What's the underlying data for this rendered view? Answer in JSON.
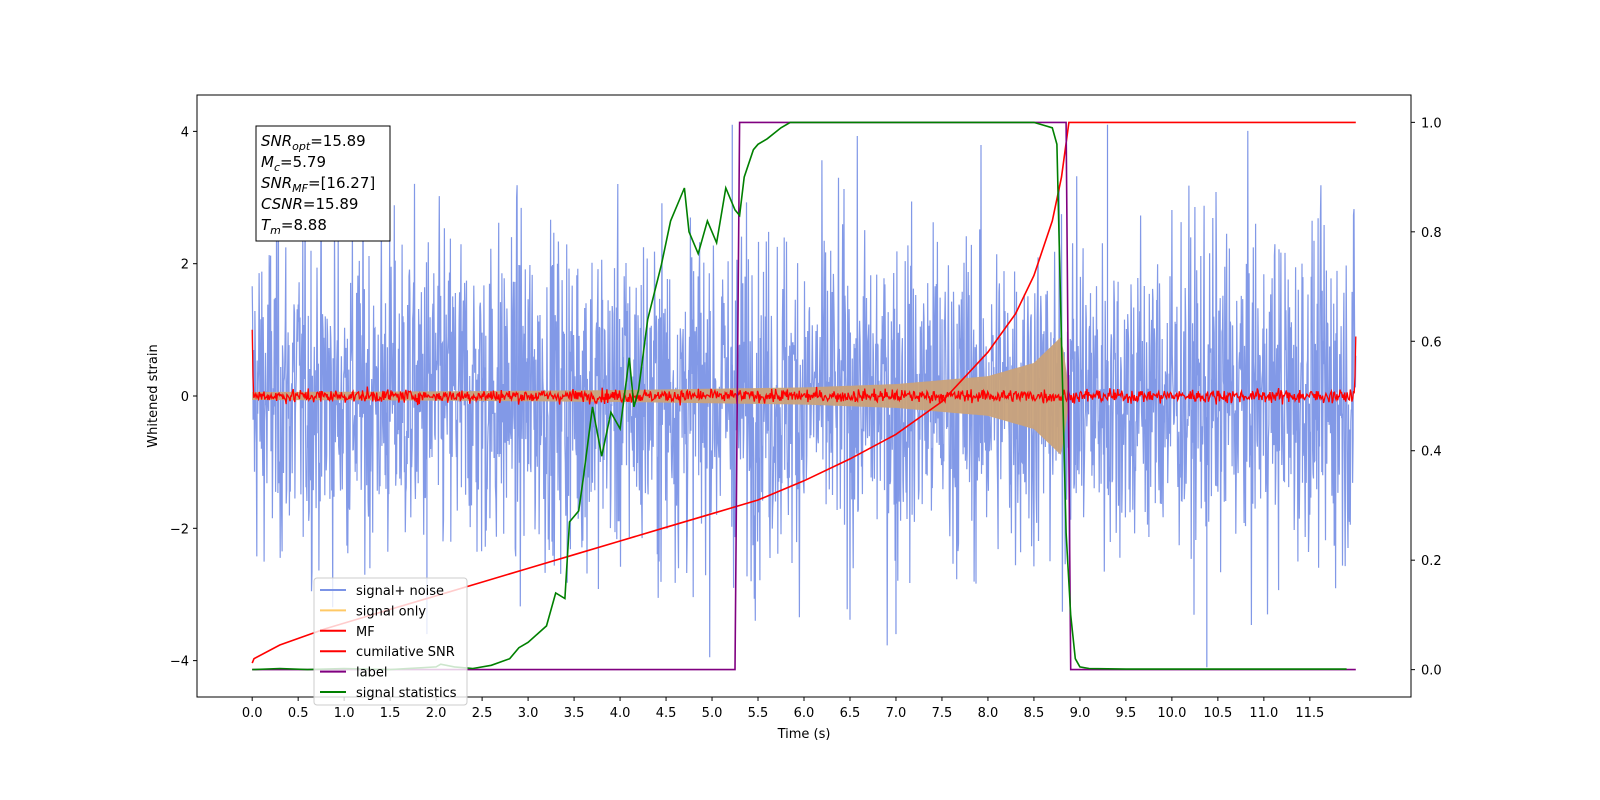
{
  "chart_data": {
    "type": "line",
    "xlabel": "Time (s)",
    "ylabel": "Whitened strain",
    "xlim": [
      -0.6,
      12.6
    ],
    "ylim": [
      -4.55,
      4.55
    ],
    "y2lim": [
      -0.05,
      1.05
    ],
    "x_ticks": [
      0.0,
      0.5,
      1.0,
      1.5,
      2.0,
      2.5,
      3.0,
      3.5,
      4.0,
      4.5,
      5.0,
      5.5,
      6.0,
      6.5,
      7.0,
      7.5,
      8.0,
      8.5,
      9.0,
      9.5,
      10.0,
      10.5,
      11.0,
      11.5
    ],
    "x_tick_labels": [
      "0.0",
      "0.5",
      "1.0",
      "1.5",
      "2.0",
      "2.5",
      "3.0",
      "3.5",
      "4.0",
      "4.5",
      "5.0",
      "5.5",
      "6.0",
      "6.5",
      "7.0",
      "7.5",
      "8.0",
      "8.5",
      "9.0",
      "9.5",
      "10.0",
      "10.5",
      "11.0",
      "11.5"
    ],
    "y_ticks": [
      -4,
      -2,
      0,
      2,
      4
    ],
    "y_tick_labels": [
      "−4",
      "−2",
      "0",
      "2",
      "4"
    ],
    "y2_ticks": [
      0.0,
      0.2,
      0.4,
      0.6,
      0.8,
      1.0
    ],
    "y2_tick_labels": [
      "0.0",
      "0.2",
      "0.4",
      "0.6",
      "0.8",
      "1.0"
    ],
    "annotation": [
      {
        "main": "SNR",
        "sub": "opt",
        "rest": "=15.89"
      },
      {
        "main": "M",
        "sub": "c",
        "rest": "=5.79"
      },
      {
        "main": "SNR",
        "sub": "MF",
        "rest": "=[16.27]"
      },
      {
        "main": "CSNR",
        "sub": "",
        "rest": "=15.89"
      },
      {
        "main": "T",
        "sub": "m",
        "rest": "=8.88"
      }
    ],
    "legend": {
      "position": "lower-left",
      "entries": [
        {
          "label": "signal+ noise",
          "color": "#7b93e6"
        },
        {
          "label": "signal only",
          "color": "#ffc966"
        },
        {
          "label": "MF",
          "color": "#ff0000"
        },
        {
          "label": "cumilative SNR",
          "color": "#ff0000"
        },
        {
          "label": "label",
          "color": "#800080"
        },
        {
          "label": "signal statistics",
          "color": "#008000"
        }
      ]
    },
    "series": [
      {
        "name": "signal+ noise",
        "axis": "left",
        "color": "#7b93e6",
        "description_of_shape": "whitened noise time series spanning 0-12 s, roughly ±2.5 with spikes up to ±4",
        "x_range": [
          0,
          12
        ],
        "amplitude": 1.25
      },
      {
        "name": "signal only",
        "axis": "left",
        "color": "#c9a27a",
        "x_range": [
          0,
          8.88
        ],
        "envelope_x": [
          0,
          2,
          4,
          6,
          7,
          8,
          8.5,
          8.8,
          8.88
        ],
        "envelope_y": [
          0.06,
          0.07,
          0.09,
          0.13,
          0.18,
          0.3,
          0.5,
          0.9,
          0.1
        ]
      },
      {
        "name": "MF",
        "axis": "left",
        "color": "#ff0000",
        "x_range": [
          0,
          12
        ],
        "amplitude": 0.05,
        "edge_values": {
          "start": 1.0,
          "end": 0.9
        }
      },
      {
        "name": "cumilative SNR",
        "axis": "right",
        "color": "#ff0000",
        "x": [
          0.0,
          0.02,
          0.3,
          0.8,
          1.5,
          2.0,
          2.5,
          3.0,
          3.5,
          4.0,
          4.5,
          5.0,
          5.5,
          6.0,
          6.5,
          7.0,
          7.5,
          8.0,
          8.3,
          8.5,
          8.7,
          8.8,
          8.88,
          12.0
        ],
        "y": [
          0.012,
          0.02,
          0.045,
          0.075,
          0.11,
          0.135,
          0.16,
          0.185,
          0.21,
          0.235,
          0.26,
          0.285,
          0.31,
          0.345,
          0.385,
          0.43,
          0.49,
          0.58,
          0.65,
          0.72,
          0.82,
          0.9,
          1.0,
          1.0
        ]
      },
      {
        "name": "label",
        "axis": "right",
        "color": "#800080",
        "x": [
          0.0,
          5.25,
          5.3,
          8.85,
          8.9,
          12.0
        ],
        "y": [
          0.0,
          0.0,
          1.0,
          1.0,
          0.0,
          0.0
        ]
      },
      {
        "name": "signal statistics",
        "axis": "right",
        "color": "#008000",
        "x": [
          0.0,
          0.3,
          0.6,
          1.0,
          1.5,
          2.0,
          2.05,
          2.2,
          2.4,
          2.6,
          2.8,
          2.9,
          3.0,
          3.1,
          3.2,
          3.3,
          3.4,
          3.45,
          3.55,
          3.6,
          3.7,
          3.8,
          3.9,
          4.0,
          4.1,
          4.15,
          4.2,
          4.3,
          4.45,
          4.55,
          4.65,
          4.7,
          4.75,
          4.85,
          4.95,
          5.05,
          5.15,
          5.25,
          5.3,
          5.35,
          5.45,
          5.5,
          5.6,
          5.75,
          5.85,
          6.0,
          6.5,
          7.0,
          7.5,
          8.0,
          8.5,
          8.7,
          8.75,
          8.8,
          8.85,
          8.9,
          8.95,
          9.0,
          9.1,
          9.5,
          10.0,
          11.0,
          11.9
        ],
        "y": [
          0.0,
          0.002,
          0.0,
          0.002,
          0.0,
          0.005,
          0.01,
          0.005,
          0.002,
          0.008,
          0.02,
          0.04,
          0.05,
          0.065,
          0.08,
          0.14,
          0.13,
          0.27,
          0.29,
          0.35,
          0.48,
          0.39,
          0.47,
          0.44,
          0.57,
          0.48,
          0.51,
          0.64,
          0.74,
          0.82,
          0.86,
          0.88,
          0.8,
          0.76,
          0.82,
          0.78,
          0.88,
          0.84,
          0.83,
          0.9,
          0.95,
          0.96,
          0.97,
          0.99,
          1.0,
          1.0,
          1.0,
          1.0,
          1.0,
          1.0,
          1.0,
          0.99,
          0.96,
          0.6,
          0.25,
          0.1,
          0.02,
          0.005,
          0.002,
          0.001,
          0.001,
          0.001,
          0.001
        ]
      }
    ]
  }
}
